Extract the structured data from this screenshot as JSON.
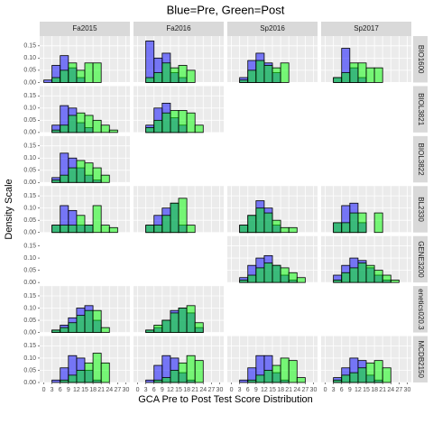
{
  "chart_data": {
    "type": "histogram",
    "title": "Blue=Pre, Green=Post",
    "x_label": "GCA Pre to Post Test Score Distribution",
    "y_label": "Density Scale",
    "bins": [
      0,
      3,
      6,
      9,
      12,
      15,
      18,
      21,
      24,
      27,
      30
    ],
    "xlim": [
      -1.5,
      31.5
    ],
    "xticks": [
      0,
      3,
      6,
      9,
      12,
      15,
      18,
      21,
      24,
      27,
      30
    ],
    "ylim": [
      0,
      0.19
    ],
    "yticks": [
      {
        "value": 0,
        "label": "0.00"
      },
      {
        "value": 0.05,
        "label": "0.05"
      },
      {
        "value": 0.1,
        "label": "0.10"
      },
      {
        "value": 0.15,
        "label": "0.15"
      }
    ],
    "grid": true,
    "pre_color": "#0000ff",
    "post_color": "#00ff00",
    "alpha": 0.5,
    "columns": [
      "Fa2015",
      "Fa2016",
      "Sp2016",
      "Sp2017"
    ],
    "rows": [
      {
        "label": "BIO1600",
        "panels": [
          {
            "pre": [
              0.01,
              0.07,
              0.11,
              0.06,
              0.02,
              0,
              0,
              0,
              0,
              0
            ],
            "post": [
              0,
              0.02,
              0.05,
              0.08,
              0.05,
              0.08,
              0.08,
              0,
              0,
              0
            ]
          },
          {
            "pre": [
              0,
              0.17,
              0.1,
              0.12,
              0.04,
              0.02,
              0,
              0,
              0,
              0
            ],
            "post": [
              0,
              0.02,
              0.04,
              0.08,
              0.06,
              0.07,
              0.05,
              0,
              0,
              0
            ]
          },
          {
            "pre": [
              0,
              0.02,
              0.09,
              0.12,
              0.08,
              0.04,
              0,
              0,
              0,
              0
            ],
            "post": [
              0,
              0.01,
              0.05,
              0.09,
              0.07,
              0.06,
              0.08,
              0,
              0,
              0
            ]
          },
          {
            "pre": [
              0,
              0.02,
              0.14,
              0.06,
              0.02,
              0,
              0,
              0,
              0,
              0
            ],
            "post": [
              0,
              0.02,
              0.04,
              0.08,
              0.08,
              0.06,
              0.06,
              0,
              0,
              0
            ]
          }
        ]
      },
      {
        "label": "BIOL3821",
        "panels": [
          {
            "pre": [
              0,
              0.03,
              0.11,
              0.1,
              0.04,
              0.02,
              0,
              0,
              0,
              0
            ],
            "post": [
              0,
              0.01,
              0.03,
              0.07,
              0.08,
              0.07,
              0.05,
              0.03,
              0.01,
              0
            ]
          },
          {
            "pre": [
              0,
              0.03,
              0.1,
              0.12,
              0.06,
              0.03,
              0,
              0,
              0,
              0
            ],
            "post": [
              0,
              0.02,
              0.05,
              0.08,
              0.09,
              0.09,
              0.08,
              0.03,
              0,
              0
            ]
          },
          null,
          null
        ]
      },
      {
        "label": "BIOL3822",
        "panels": [
          {
            "pre": [
              0,
              0.02,
              0.12,
              0.1,
              0.06,
              0.03,
              0.01,
              0,
              0,
              0
            ],
            "post": [
              0,
              0.01,
              0.03,
              0.06,
              0.09,
              0.08,
              0.06,
              0.03,
              0,
              0
            ]
          },
          null,
          null,
          null
        ]
      },
      {
        "label": "BL2330",
        "panels": [
          {
            "pre": [
              0,
              0.03,
              0.11,
              0.09,
              0.03,
              0.03,
              0,
              0,
              0,
              0
            ],
            "post": [
              0,
              0.03,
              0.03,
              0.03,
              0.07,
              0.03,
              0.11,
              0.03,
              0.02,
              0
            ]
          },
          {
            "pre": [
              0,
              0.03,
              0.07,
              0.1,
              0.12,
              0.03,
              0,
              0,
              0,
              0
            ],
            "post": [
              0,
              0.03,
              0.03,
              0.07,
              0.12,
              0.14,
              0.03,
              0,
              0,
              0
            ]
          },
          {
            "pre": [
              0,
              0.03,
              0.07,
              0.13,
              0.1,
              0.03,
              0,
              0,
              0,
              0
            ],
            "post": [
              0,
              0.03,
              0.07,
              0.1,
              0.08,
              0.05,
              0.02,
              0.02,
              0,
              0
            ]
          },
          {
            "pre": [
              0,
              0.04,
              0.11,
              0.12,
              0.04,
              0,
              0,
              0,
              0,
              0
            ],
            "post": [
              0,
              0.04,
              0.04,
              0.08,
              0.08,
              0,
              0.08,
              0,
              0,
              0
            ]
          }
        ]
      },
      {
        "label": "GENE3200",
        "panels": [
          null,
          null,
          {
            "pre": [
              0,
              0.02,
              0.07,
              0.1,
              0.11,
              0.07,
              0.03,
              0.01,
              0,
              0
            ],
            "post": [
              0,
              0.01,
              0.03,
              0.06,
              0.08,
              0.07,
              0.06,
              0.04,
              0.02,
              0
            ]
          },
          {
            "pre": [
              0,
              0.03,
              0.07,
              0.1,
              0.09,
              0.06,
              0.03,
              0.01,
              0,
              0
            ],
            "post": [
              0,
              0.01,
              0.04,
              0.06,
              0.08,
              0.07,
              0.05,
              0.03,
              0.01,
              0
            ]
          }
        ]
      },
      {
        "label": "enetics020.3",
        "panels": [
          {
            "pre": [
              0,
              0.01,
              0.03,
              0.06,
              0.1,
              0.11,
              0.05,
              0,
              0,
              0
            ],
            "post": [
              0,
              0.01,
              0.02,
              0.04,
              0.07,
              0.09,
              0.09,
              0.02,
              0,
              0
            ]
          },
          {
            "pre": [
              0,
              0.01,
              0.02,
              0.05,
              0.09,
              0.1,
              0.08,
              0.02,
              0,
              0
            ],
            "post": [
              0,
              0.01,
              0.03,
              0.05,
              0.08,
              0.1,
              0.11,
              0.04,
              0,
              0
            ]
          },
          null,
          null
        ]
      },
      {
        "label": "MCDB2150",
        "panels": [
          {
            "pre": [
              0,
              0.01,
              0.06,
              0.11,
              0.1,
              0.05,
              0.01,
              0,
              0,
              0
            ],
            "post": [
              0,
              0,
              0.01,
              0.03,
              0.05,
              0.08,
              0.12,
              0.08,
              0,
              0
            ]
          },
          {
            "pre": [
              0,
              0.01,
              0.07,
              0.11,
              0.1,
              0.04,
              0.01,
              0,
              0,
              0
            ],
            "post": [
              0,
              0,
              0.01,
              0.02,
              0.05,
              0.08,
              0.11,
              0.09,
              0,
              0
            ]
          },
          {
            "pre": [
              0,
              0.01,
              0.06,
              0.11,
              0.11,
              0.04,
              0.01,
              0,
              0,
              0
            ],
            "post": [
              0,
              0,
              0.01,
              0.03,
              0.05,
              0.07,
              0.1,
              0.09,
              0.02,
              0
            ]
          },
          {
            "pre": [
              0,
              0.02,
              0.06,
              0.1,
              0.09,
              0.03,
              0.01,
              0,
              0,
              0
            ],
            "post": [
              0,
              0.01,
              0.03,
              0.04,
              0.06,
              0.08,
              0.09,
              0.06,
              0,
              0
            ]
          }
        ]
      }
    ]
  }
}
